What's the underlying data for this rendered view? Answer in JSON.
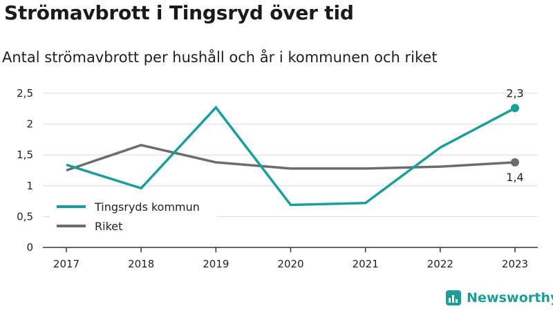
{
  "header": {
    "title": "Strömavbrott i Tingsryd över tid",
    "subtitle": "Antal strömavbrott per hushåll och år i kommunen och riket"
  },
  "brand": {
    "name": "Newsworthy",
    "color": "#1a9e98",
    "icon": "newsworthy-bar-chart-icon"
  },
  "colors": {
    "tingsryd": "#13a19a",
    "riket": "#6c6b70",
    "grid": "#d9d9d9",
    "axis": "#333333"
  },
  "chart_data": {
    "type": "line",
    "x": [
      "2017",
      "2018",
      "2019",
      "2020",
      "2021",
      "2022",
      "2023"
    ],
    "ylim": [
      0,
      2.5
    ],
    "yticks": [
      0,
      0.5,
      1,
      1.5,
      2,
      2.5
    ],
    "ytick_labels": [
      "0",
      "0,5",
      "1",
      "1,5",
      "2",
      "2,5"
    ],
    "grid": true,
    "legend_position": "bottom-left",
    "series": [
      {
        "name": "Tingsryds kommun",
        "color": "#13a19a",
        "values": [
          1.34,
          0.96,
          2.27,
          0.69,
          0.72,
          1.62,
          2.26
        ],
        "end_label": "2,3"
      },
      {
        "name": "Riket",
        "color": "#6c6b70",
        "values": [
          1.25,
          1.66,
          1.38,
          1.28,
          1.28,
          1.31,
          1.38
        ],
        "end_label": "1,4"
      }
    ]
  }
}
